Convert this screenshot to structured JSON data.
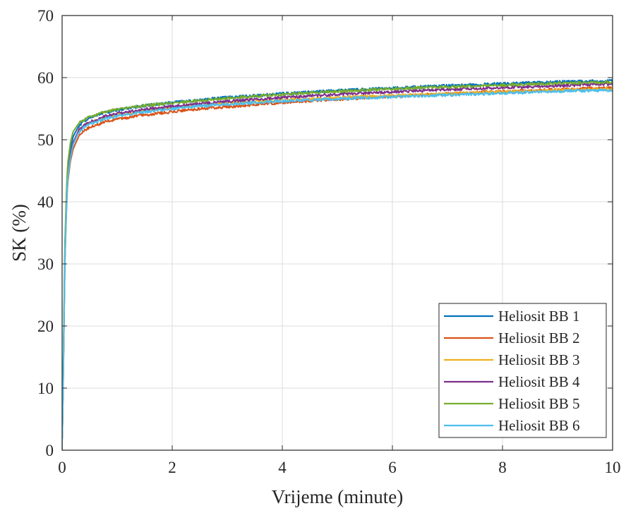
{
  "chart_data": {
    "type": "line",
    "title": "",
    "xlabel": "Vrijeme (minute)",
    "ylabel": "SK (%)",
    "xlim": [
      0,
      10
    ],
    "ylim": [
      0,
      70
    ],
    "xticks": [
      0,
      2,
      4,
      6,
      8,
      10
    ],
    "yticks": [
      0,
      10,
      20,
      30,
      40,
      50,
      60,
      70
    ],
    "xtick_labels": [
      "0",
      "2",
      "4",
      "6",
      "8",
      "10"
    ],
    "ytick_labels": [
      "0",
      "10",
      "20",
      "30",
      "40",
      "50",
      "60",
      "70"
    ],
    "grid": true,
    "legend_position": "lower-right",
    "series": [
      {
        "name": "Heliosit BB 1",
        "color": "#0072BD",
        "x": [
          -0.05,
          0,
          0.02,
          0.05,
          0.08,
          0.1,
          0.15,
          0.2,
          0.3,
          0.4,
          0.5,
          0.75,
          1,
          1.5,
          2,
          2.5,
          3,
          4,
          5,
          6,
          7,
          8,
          9,
          10
        ],
        "y": [
          0,
          0,
          12,
          32,
          41,
          45,
          48.5,
          50.5,
          52.2,
          53,
          53.5,
          54.3,
          54.8,
          55.5,
          56,
          56.4,
          56.8,
          57.4,
          57.9,
          58.3,
          58.7,
          59,
          59.3,
          59.5
        ]
      },
      {
        "name": "Heliosit BB 2",
        "color": "#D95319",
        "x": [
          -0.05,
          0,
          0.02,
          0.05,
          0.08,
          0.1,
          0.15,
          0.2,
          0.3,
          0.4,
          0.5,
          0.75,
          1,
          1.5,
          2,
          2.5,
          3,
          4,
          5,
          6,
          7,
          8,
          9,
          10
        ],
        "y": [
          0,
          0,
          11,
          30,
          39,
          43,
          46.5,
          48.5,
          50.5,
          51.5,
          52,
          52.8,
          53.3,
          54,
          54.5,
          55,
          55.3,
          56,
          56.5,
          57,
          57.4,
          57.8,
          58.1,
          58.4
        ]
      },
      {
        "name": "Heliosit BB 3",
        "color": "#EDB120",
        "x": [
          -0.05,
          0,
          0.02,
          0.05,
          0.08,
          0.1,
          0.15,
          0.2,
          0.3,
          0.4,
          0.5,
          0.75,
          1,
          1.5,
          2,
          2.5,
          3,
          4,
          5,
          6,
          7,
          8,
          9,
          10
        ],
        "y": [
          0,
          0,
          11,
          31,
          40,
          44,
          47.5,
          49.5,
          51.5,
          52.2,
          52.7,
          53.5,
          54,
          54.7,
          55.2,
          55.6,
          55.9,
          56.4,
          56.8,
          57.1,
          57.4,
          57.7,
          58,
          58.2
        ]
      },
      {
        "name": "Heliosit BB 4",
        "color": "#7E2F8E",
        "x": [
          -0.05,
          0,
          0.02,
          0.05,
          0.08,
          0.1,
          0.15,
          0.2,
          0.3,
          0.4,
          0.5,
          0.75,
          1,
          1.5,
          2,
          2.5,
          3,
          4,
          5,
          6,
          7,
          8,
          9,
          10
        ],
        "y": [
          0,
          0,
          11.5,
          31,
          40,
          44,
          47.5,
          49.5,
          51.5,
          52.3,
          52.8,
          53.7,
          54.2,
          54.9,
          55.4,
          55.8,
          56.2,
          56.8,
          57.3,
          57.7,
          58.1,
          58.4,
          58.7,
          59
        ]
      },
      {
        "name": "Heliosit BB 5",
        "color": "#77AC30",
        "x": [
          -0.05,
          0,
          0.02,
          0.05,
          0.08,
          0.1,
          0.15,
          0.2,
          0.3,
          0.4,
          0.5,
          0.75,
          1,
          1.5,
          2,
          2.5,
          3,
          4,
          5,
          6,
          7,
          8,
          9,
          10
        ],
        "y": [
          0,
          0,
          12.5,
          33,
          42,
          46,
          49.5,
          51.3,
          52.6,
          53.2,
          53.7,
          54.4,
          54.9,
          55.5,
          55.9,
          56.3,
          56.7,
          57.3,
          57.8,
          58.2,
          58.5,
          58.8,
          59.1,
          59.3
        ]
      },
      {
        "name": "Heliosit BB 6",
        "color": "#4DBEEE",
        "x": [
          -0.05,
          0,
          0.02,
          0.05,
          0.08,
          0.1,
          0.15,
          0.2,
          0.3,
          0.4,
          0.5,
          0.75,
          1,
          1.5,
          2,
          2.5,
          3,
          4,
          5,
          6,
          7,
          8,
          9,
          10
        ],
        "y": [
          0,
          0,
          11,
          30,
          39.5,
          43.5,
          47,
          49.2,
          51.2,
          52,
          52.5,
          53.3,
          53.8,
          54.5,
          55,
          55.4,
          55.7,
          56.2,
          56.6,
          56.9,
          57.2,
          57.5,
          57.8,
          58
        ]
      }
    ]
  }
}
